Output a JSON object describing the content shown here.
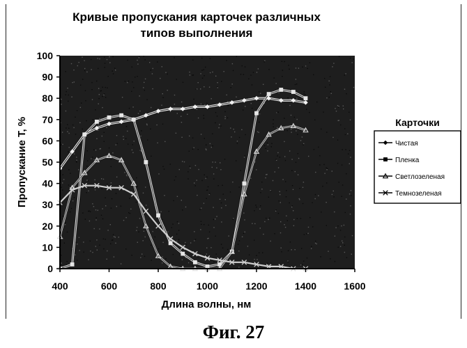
{
  "caption": "Фиг. 27",
  "chart_data": {
    "type": "line",
    "title_lines": [
      "Кривые пропускания карточек различных",
      "типов выполнения"
    ],
    "xlabel": "Длина волны, нм",
    "ylabel": "Пропускание T, %",
    "xlim": [
      400,
      1600
    ],
    "ylim": [
      0,
      100
    ],
    "x_ticks": [
      400,
      600,
      800,
      1000,
      1200,
      1400,
      1600
    ],
    "y_ticks": [
      0,
      10,
      20,
      30,
      40,
      50,
      60,
      70,
      80,
      90,
      100
    ],
    "grid": false,
    "plot_background": "#1e1e1e",
    "legend": {
      "title": "Карточки",
      "position": "right"
    },
    "series": [
      {
        "name": "Чистая",
        "marker": "diamond",
        "x": [
          400,
          450,
          500,
          550,
          600,
          650,
          700,
          750,
          800,
          850,
          900,
          950,
          1000,
          1050,
          1100,
          1150,
          1200,
          1250,
          1300,
          1350,
          1400
        ],
        "y": [
          47,
          55,
          63,
          66,
          68,
          69,
          70,
          72,
          74,
          75,
          75,
          76,
          76,
          77,
          78,
          79,
          80,
          80,
          79,
          79,
          78
        ]
      },
      {
        "name": "Пленка",
        "marker": "square",
        "x": [
          400,
          450,
          500,
          550,
          600,
          650,
          700,
          750,
          800,
          850,
          900,
          950,
          1000,
          1050,
          1100,
          1150,
          1200,
          1250,
          1300,
          1350,
          1400
        ],
        "y": [
          0,
          2,
          63,
          69,
          71,
          72,
          70,
          50,
          25,
          12,
          7,
          3,
          1,
          2,
          8,
          40,
          73,
          82,
          84,
          83,
          80
        ]
      },
      {
        "name": "Светлозеленая",
        "marker": "triangle",
        "x": [
          400,
          450,
          500,
          550,
          600,
          650,
          700,
          750,
          800,
          850,
          900,
          950,
          1000,
          1050,
          1100,
          1150,
          1200,
          1250,
          1300,
          1350,
          1400
        ],
        "y": [
          15,
          38,
          45,
          51,
          53,
          51,
          40,
          20,
          6,
          1,
          0,
          0,
          0,
          0,
          8,
          35,
          55,
          63,
          66,
          67,
          65
        ]
      },
      {
        "name": "Темнозеленая",
        "marker": "x",
        "x": [
          400,
          450,
          500,
          550,
          600,
          650,
          700,
          750,
          800,
          850,
          900,
          950,
          1000,
          1050,
          1100,
          1150,
          1200,
          1250,
          1300,
          1350,
          1400
        ],
        "y": [
          31,
          37,
          39,
          39,
          38,
          38,
          35,
          27,
          20,
          14,
          10,
          7,
          5,
          4,
          3,
          3,
          2,
          1,
          1,
          0,
          0
        ]
      }
    ]
  }
}
